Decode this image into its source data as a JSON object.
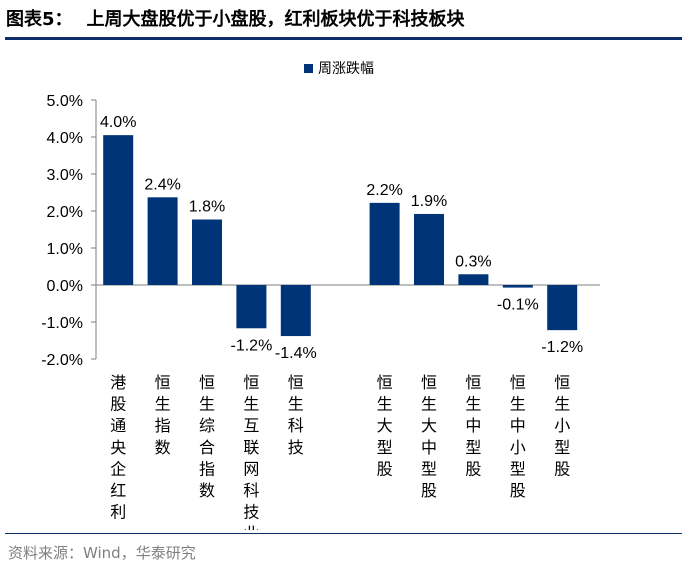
{
  "figure": {
    "label": "图表5：",
    "title": "上周大盘股优于小盘股，红利板块优于科技板块",
    "source": "资料来源：Wind，华泰研究"
  },
  "colors": {
    "bar": "#003478",
    "rule": "#0d2e6a",
    "source_text": "#7f7f7f"
  },
  "chart_data": {
    "type": "bar",
    "title": "",
    "xlabel": "",
    "ylabel": "",
    "ylim": [
      -2.0,
      5.0
    ],
    "yticks": [
      5.0,
      4.0,
      3.0,
      2.0,
      1.0,
      0.0,
      -1.0,
      -2.0
    ],
    "ytick_labels": [
      "5.0%",
      "4.0%",
      "3.0%",
      "2.0%",
      "1.0%",
      "0.0%",
      "-1.0%",
      "-2.0%"
    ],
    "grid": false,
    "legend": {
      "position": "top-center",
      "entries": [
        "周涨跌幅"
      ]
    },
    "categories": [
      "港股通央企红利",
      "恒生指数",
      "恒生综合指数",
      "恒生互联网科技业",
      "恒生科技",
      "",
      "恒生大型股",
      "恒生大中型股",
      "恒生中型股",
      "恒生中小型股",
      "恒生小型股"
    ],
    "series": [
      {
        "name": "周涨跌幅",
        "values": [
          4.05,
          2.37,
          1.77,
          -1.17,
          -1.38,
          null,
          2.22,
          1.92,
          0.29,
          -0.07,
          -1.22
        ],
        "labels": [
          "4.0%",
          "2.4%",
          "1.8%",
          "-1.2%",
          "-1.4%",
          "",
          "2.2%",
          "1.9%",
          "0.3%",
          "-0.1%",
          "-1.2%"
        ]
      }
    ]
  }
}
